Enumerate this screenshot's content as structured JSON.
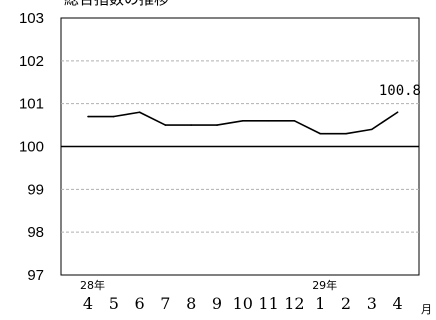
{
  "chart_data": {
    "type": "line",
    "title": "総合指数の推移",
    "xlabel": "月",
    "ylabel": "",
    "ylim": [
      97,
      103
    ],
    "yticks": [
      97,
      98,
      99,
      100,
      101,
      102,
      103
    ],
    "baseline": 100,
    "grid": "horizontal dashed",
    "categories": [
      "4",
      "5",
      "6",
      "7",
      "8",
      "9",
      "10",
      "11",
      "12",
      "1",
      "2",
      "3",
      "4"
    ],
    "year_markers": [
      {
        "label": "28年",
        "category_index": 0
      },
      {
        "label": "29年",
        "category_index": 9
      }
    ],
    "series": [
      {
        "values": [
          100.7,
          100.7,
          100.8,
          100.5,
          100.5,
          100.5,
          100.6,
          100.6,
          100.6,
          100.3,
          100.3,
          100.4,
          100.8
        ]
      }
    ],
    "annotations": [
      {
        "text": "100.8",
        "category_index": 12
      }
    ],
    "colors": {
      "line": "#000000",
      "grid": "#b0b0b0",
      "axis": "#000000"
    }
  }
}
